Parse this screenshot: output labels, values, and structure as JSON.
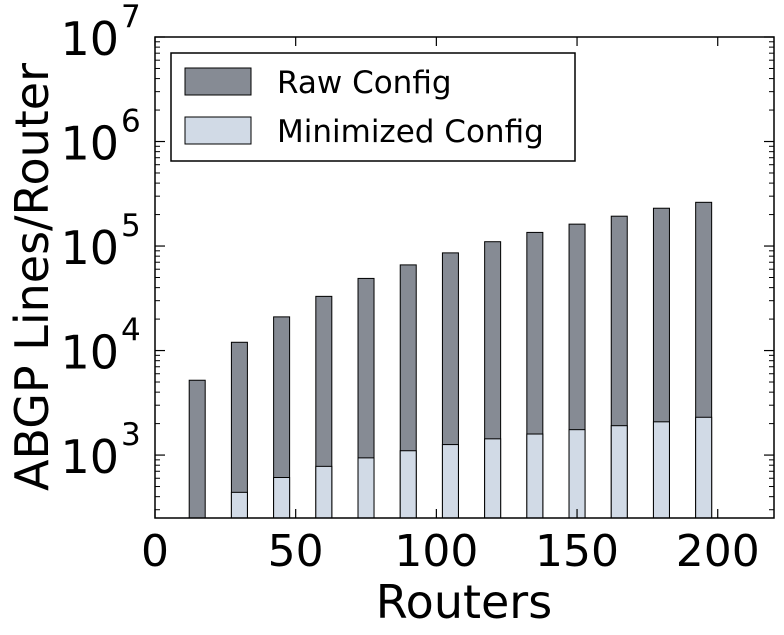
{
  "chart_data": {
    "type": "bar",
    "title": "",
    "xlabel": "Routers",
    "ylabel": "ABGP Lines/Router",
    "xlim": [
      0,
      220
    ],
    "ylim": [
      250,
      10000000
    ],
    "yscale": "log",
    "grid": false,
    "legend_position": "top-left",
    "x": [
      15,
      30,
      45,
      60,
      75,
      90,
      105,
      120,
      135,
      150,
      165,
      180,
      195
    ],
    "x_ticks": [
      {
        "value": 0,
        "label": "0"
      },
      {
        "value": 50,
        "label": "50"
      },
      {
        "value": 100,
        "label": "100"
      },
      {
        "value": 150,
        "label": "150"
      },
      {
        "value": 200,
        "label": "200"
      }
    ],
    "y_ticks": [
      {
        "value": 1000,
        "base": "10",
        "exp": "3"
      },
      {
        "value": 10000,
        "base": "10",
        "exp": "4"
      },
      {
        "value": 100000,
        "base": "10",
        "exp": "5"
      },
      {
        "value": 1000000,
        "base": "10",
        "exp": "6"
      },
      {
        "value": 10000000,
        "base": "10",
        "exp": "7"
      }
    ],
    "series": [
      {
        "name": "Raw Config",
        "color": "#868b94",
        "values": [
          5200,
          12000,
          21000,
          33000,
          49000,
          66000,
          86000,
          110000,
          135000,
          162000,
          193000,
          230000,
          262000
        ]
      },
      {
        "name": "Minimized Config",
        "color": "#d1dae6",
        "values": [
          null,
          440,
          610,
          780,
          940,
          1100,
          1260,
          1430,
          1590,
          1750,
          1910,
          2080,
          2300
        ]
      }
    ]
  }
}
